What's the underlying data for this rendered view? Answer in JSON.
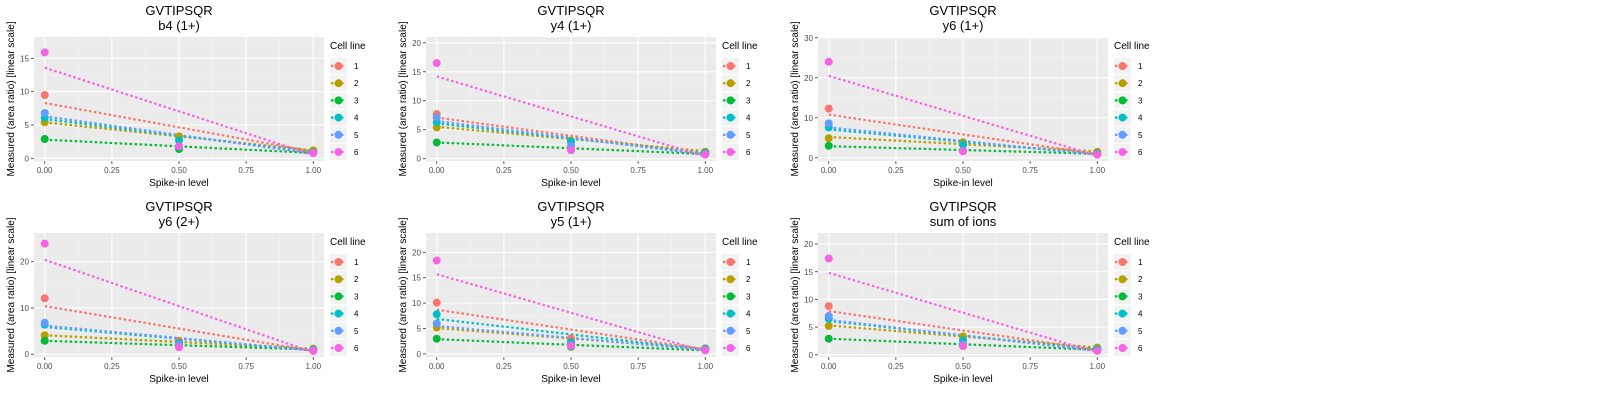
{
  "figure": {
    "legend_title": "Cell line"
  },
  "colors": {
    "1": "#F8766D",
    "2": "#B79F00",
    "3": "#00BA38",
    "4": "#00BFC4",
    "5": "#619CFF",
    "6": "#F564E3",
    "panel_bg": "#EBEBEB",
    "grid": "#ffffff"
  },
  "chart_data": [
    {
      "type": "scatter",
      "title": "GVTIPSQR",
      "subtitle": "b4 (1+)",
      "xlabel": "Spike-in level",
      "ylabel": "Measured (area ratio) [linear scale]",
      "xlim": [
        -0.04,
        1.04
      ],
      "ylim": [
        -0.4,
        18.2
      ],
      "x_ticks": [
        0,
        0.25,
        0.5,
        0.75,
        1
      ],
      "x_tick_labels": [
        "0.00",
        "0.25",
        "0.50",
        "0.75",
        "1.00"
      ],
      "y_ticks": [
        0,
        5,
        10,
        15
      ],
      "y_tick_labels": [
        "0",
        "5",
        "10",
        "15"
      ],
      "grid": true,
      "legend": "right",
      "legend_title": "Cell line",
      "series": [
        {
          "name": "1",
          "color": "#F8766D",
          "points": [
            [
              0,
              9.5
            ],
            [
              0.5,
              3.2
            ],
            [
              1,
              1.1
            ]
          ],
          "trend": [
            8.3,
            1.0
          ]
        },
        {
          "name": "2",
          "color": "#B79F00",
          "points": [
            [
              0,
              5.4
            ],
            [
              0.5,
              3.3
            ],
            [
              1,
              1.2
            ]
          ],
          "trend": [
            5.4,
            1.2
          ]
        },
        {
          "name": "3",
          "color": "#00BA38",
          "points": [
            [
              0,
              2.9
            ],
            [
              0.5,
              1.4
            ],
            [
              1,
              0.9
            ]
          ],
          "trend": [
            2.8,
            0.8
          ]
        },
        {
          "name": "4",
          "color": "#00BFC4",
          "points": [
            [
              0,
              6.1
            ],
            [
              0.5,
              2.7
            ],
            [
              1,
              0.9
            ]
          ],
          "trend": [
            5.9,
            0.9
          ]
        },
        {
          "name": "5",
          "color": "#619CFF",
          "points": [
            [
              0,
              6.8
            ],
            [
              0.5,
              1.8
            ],
            [
              1,
              0.8
            ]
          ],
          "trend": [
            6.3,
            0.7
          ]
        },
        {
          "name": "6",
          "color": "#F564E3",
          "points": [
            [
              0,
              15.9
            ],
            [
              0.5,
              1.8
            ],
            [
              1,
              0.8
            ]
          ],
          "trend": [
            13.6,
            0.5
          ]
        }
      ]
    },
    {
      "type": "scatter",
      "title": "GVTIPSQR",
      "subtitle": "y4 (1+)",
      "xlabel": "Spike-in level",
      "ylabel": "Measured (area ratio) [linear scale]",
      "xlim": [
        -0.04,
        1.04
      ],
      "ylim": [
        -0.4,
        21.0
      ],
      "x_ticks": [
        0,
        0.25,
        0.5,
        0.75,
        1
      ],
      "x_tick_labels": [
        "0.00",
        "0.25",
        "0.50",
        "0.75",
        "1.00"
      ],
      "y_ticks": [
        0,
        5,
        10,
        15,
        20
      ],
      "y_tick_labels": [
        "0",
        "5",
        "10",
        "15",
        "20"
      ],
      "grid": true,
      "legend": "right",
      "legend_title": "Cell line",
      "series": [
        {
          "name": "1",
          "color": "#F8766D",
          "points": [
            [
              0,
              7.7
            ],
            [
              0.5,
              3.0
            ],
            [
              1,
              1.1
            ]
          ],
          "trend": [
            7.1,
            0.8
          ]
        },
        {
          "name": "2",
          "color": "#B79F00",
          "points": [
            [
              0,
              5.4
            ],
            [
              0.5,
              3.1
            ],
            [
              1,
              1.2
            ]
          ],
          "trend": [
            5.5,
            1.3
          ]
        },
        {
          "name": "3",
          "color": "#00BA38",
          "points": [
            [
              0,
              2.8
            ],
            [
              0.5,
              1.5
            ],
            [
              1,
              0.9
            ]
          ],
          "trend": [
            2.8,
            0.8
          ]
        },
        {
          "name": "4",
          "color": "#00BFC4",
          "points": [
            [
              0,
              6.3
            ],
            [
              0.5,
              2.9
            ],
            [
              1,
              1.0
            ]
          ],
          "trend": [
            6.1,
            0.9
          ]
        },
        {
          "name": "5",
          "color": "#619CFF",
          "points": [
            [
              0,
              7.1
            ],
            [
              0.5,
              2.2
            ],
            [
              1,
              0.8
            ]
          ],
          "trend": [
            6.5,
            0.7
          ]
        },
        {
          "name": "6",
          "color": "#F564E3",
          "points": [
            [
              0,
              16.5
            ],
            [
              0.5,
              1.5
            ],
            [
              1,
              0.7
            ]
          ],
          "trend": [
            14.2,
            0.4
          ]
        }
      ]
    },
    {
      "type": "scatter",
      "title": "GVTIPSQR",
      "subtitle": "y6 (1+)",
      "xlabel": "Spike-in level",
      "ylabel": "Measured (area ratio) [linear scale]",
      "xlim": [
        -0.04,
        1.04
      ],
      "ylim": [
        -0.8,
        30.2
      ],
      "x_ticks": [
        0,
        0.25,
        0.5,
        0.75,
        1
      ],
      "x_tick_labels": [
        "0.00",
        "0.25",
        "0.50",
        "0.75",
        "1.00"
      ],
      "y_ticks": [
        0,
        10,
        20,
        30
      ],
      "y_tick_labels": [
        "0",
        "10",
        "20",
        "30"
      ],
      "grid": true,
      "legend": "right",
      "legend_title": "Cell line",
      "series": [
        {
          "name": "1",
          "color": "#F8766D",
          "points": [
            [
              0,
              12.3
            ],
            [
              0.5,
              3.5
            ],
            [
              1,
              1.1
            ]
          ],
          "trend": [
            10.8,
            0.9
          ]
        },
        {
          "name": "2",
          "color": "#B79F00",
          "points": [
            [
              0,
              4.9
            ],
            [
              0.5,
              3.9
            ],
            [
              1,
              1.5
            ]
          ],
          "trend": [
            5.2,
            1.6
          ]
        },
        {
          "name": "3",
          "color": "#00BA38",
          "points": [
            [
              0,
              3.0
            ],
            [
              0.5,
              1.7
            ],
            [
              1,
              1.0
            ]
          ],
          "trend": [
            2.9,
            1.0
          ]
        },
        {
          "name": "4",
          "color": "#00BFC4",
          "points": [
            [
              0,
              7.6
            ],
            [
              0.5,
              3.3
            ],
            [
              1,
              1.0
            ]
          ],
          "trend": [
            7.1,
            0.9
          ]
        },
        {
          "name": "5",
          "color": "#619CFF",
          "points": [
            [
              0,
              8.6
            ],
            [
              0.5,
              1.8
            ],
            [
              1,
              0.9
            ]
          ],
          "trend": [
            7.6,
            0.8
          ]
        },
        {
          "name": "6",
          "color": "#F564E3",
          "points": [
            [
              0,
              24.0
            ],
            [
              0.5,
              1.6
            ],
            [
              1,
              0.8
            ]
          ],
          "trend": [
            20.5,
            0.5
          ]
        }
      ]
    },
    {
      "type": "scatter",
      "title": "GVTIPSQR",
      "subtitle": "y6 (2+)",
      "xlabel": "Spike-in level",
      "ylabel": "Measured (area ratio) [linear scale]",
      "xlim": [
        -0.04,
        1.04
      ],
      "ylim": [
        -0.6,
        26.2
      ],
      "x_ticks": [
        0,
        0.25,
        0.5,
        0.75,
        1
      ],
      "x_tick_labels": [
        "0.00",
        "0.25",
        "0.50",
        "0.75",
        "1.00"
      ],
      "y_ticks": [
        0,
        10,
        20
      ],
      "y_tick_labels": [
        "0",
        "10",
        "20"
      ],
      "grid": true,
      "legend": "right",
      "legend_title": "Cell line",
      "series": [
        {
          "name": "1",
          "color": "#F8766D",
          "points": [
            [
              0,
              12.1
            ],
            [
              0.5,
              2.9
            ],
            [
              1,
              1.1
            ]
          ],
          "trend": [
            10.4,
            0.7
          ]
        },
        {
          "name": "2",
          "color": "#B79F00",
          "points": [
            [
              0,
              4.1
            ],
            [
              0.5,
              2.6
            ],
            [
              1,
              1.2
            ]
          ],
          "trend": [
            4.1,
            1.2
          ]
        },
        {
          "name": "3",
          "color": "#00BA38",
          "points": [
            [
              0,
              2.9
            ],
            [
              0.5,
              1.9
            ],
            [
              1,
              1.0
            ]
          ],
          "trend": [
            2.9,
            1.0
          ]
        },
        {
          "name": "4",
          "color": "#00BFC4",
          "points": [
            [
              0,
              6.4
            ],
            [
              0.5,
              2.4
            ],
            [
              1,
              0.9
            ]
          ],
          "trend": [
            5.9,
            0.8
          ]
        },
        {
          "name": "5",
          "color": "#619CFF",
          "points": [
            [
              0,
              6.8
            ],
            [
              0.5,
              2.1
            ],
            [
              1,
              0.9
            ]
          ],
          "trend": [
            6.2,
            0.8
          ]
        },
        {
          "name": "6",
          "color": "#F564E3",
          "points": [
            [
              0,
              23.9
            ],
            [
              0.5,
              1.5
            ],
            [
              1,
              0.7
            ]
          ],
          "trend": [
            20.4,
            0.4
          ]
        }
      ]
    },
    {
      "type": "scatter",
      "title": "GVTIPSQR",
      "subtitle": "y5 (1+)",
      "xlabel": "Spike-in level",
      "ylabel": "Measured (area ratio) [linear scale]",
      "xlim": [
        -0.04,
        1.04
      ],
      "ylim": [
        -0.6,
        23.8
      ],
      "x_ticks": [
        0,
        0.25,
        0.5,
        0.75,
        1
      ],
      "x_tick_labels": [
        "0.00",
        "0.25",
        "0.50",
        "0.75",
        "1.00"
      ],
      "y_ticks": [
        0,
        5,
        10,
        15,
        20
      ],
      "y_tick_labels": [
        "0",
        "5",
        "10",
        "15",
        "20"
      ],
      "grid": true,
      "legend": "right",
      "legend_title": "Cell line",
      "series": [
        {
          "name": "1",
          "color": "#F8766D",
          "points": [
            [
              0,
              10.1
            ],
            [
              0.5,
              3.1
            ],
            [
              1,
              1.1
            ]
          ],
          "trend": [
            8.7,
            0.9
          ]
        },
        {
          "name": "2",
          "color": "#B79F00",
          "points": [
            [
              0,
              5.2
            ],
            [
              0.5,
              2.4
            ],
            [
              1,
              1.1
            ]
          ],
          "trend": [
            5.1,
            1.0
          ]
        },
        {
          "name": "3",
          "color": "#00BA38",
          "points": [
            [
              0,
              3.0
            ],
            [
              0.5,
              1.4
            ],
            [
              1,
              0.8
            ]
          ],
          "trend": [
            2.9,
            0.7
          ]
        },
        {
          "name": "4",
          "color": "#00BFC4",
          "points": [
            [
              0,
              7.8
            ],
            [
              0.5,
              2.3
            ],
            [
              1,
              1.0
            ]
          ],
          "trend": [
            6.9,
            0.8
          ]
        },
        {
          "name": "5",
          "color": "#619CFF",
          "points": [
            [
              0,
              6.0
            ],
            [
              0.5,
              1.8
            ],
            [
              1,
              0.9
            ]
          ],
          "trend": [
            5.5,
            0.8
          ]
        },
        {
          "name": "6",
          "color": "#F564E3",
          "points": [
            [
              0,
              18.4
            ],
            [
              0.5,
              1.6
            ],
            [
              1,
              0.7
            ]
          ],
          "trend": [
            15.7,
            0.5
          ]
        }
      ]
    },
    {
      "type": "scatter",
      "title": "GVTIPSQR",
      "subtitle": "sum of ions",
      "xlabel": "Spike-in level",
      "ylabel": "Measured (area ratio) [linear scale]",
      "xlim": [
        -0.04,
        1.04
      ],
      "ylim": [
        -0.4,
        22.0
      ],
      "x_ticks": [
        0,
        0.25,
        0.5,
        0.75,
        1
      ],
      "x_tick_labels": [
        "0.00",
        "0.25",
        "0.50",
        "0.75",
        "1.00"
      ],
      "y_ticks": [
        0,
        5,
        10,
        15,
        20
      ],
      "y_tick_labels": [
        "0",
        "5",
        "10",
        "15",
        "20"
      ],
      "grid": true,
      "legend": "right",
      "legend_title": "Cell line",
      "series": [
        {
          "name": "1",
          "color": "#F8766D",
          "points": [
            [
              0,
              8.8
            ],
            [
              0.5,
              3.3
            ],
            [
              1,
              1.1
            ]
          ],
          "trend": [
            7.9,
            0.9
          ]
        },
        {
          "name": "2",
          "color": "#B79F00",
          "points": [
            [
              0,
              5.2
            ],
            [
              0.5,
              3.3
            ],
            [
              1,
              1.3
            ]
          ],
          "trend": [
            5.3,
            1.3
          ]
        },
        {
          "name": "3",
          "color": "#00BA38",
          "points": [
            [
              0,
              2.9
            ],
            [
              0.5,
              1.6
            ],
            [
              1,
              0.9
            ]
          ],
          "trend": [
            2.9,
            0.9
          ]
        },
        {
          "name": "4",
          "color": "#00BFC4",
          "points": [
            [
              0,
              6.5
            ],
            [
              0.5,
              2.6
            ],
            [
              1,
              1.0
            ]
          ],
          "trend": [
            6.1,
            0.9
          ]
        },
        {
          "name": "5",
          "color": "#619CFF",
          "points": [
            [
              0,
              7.0
            ],
            [
              0.5,
              1.9
            ],
            [
              1,
              0.8
            ]
          ],
          "trend": [
            6.3,
            0.7
          ]
        },
        {
          "name": "6",
          "color": "#F564E3",
          "points": [
            [
              0,
              17.4
            ],
            [
              0.5,
              1.6
            ],
            [
              1,
              0.7
            ]
          ],
          "trend": [
            14.8,
            0.4
          ]
        }
      ]
    }
  ]
}
